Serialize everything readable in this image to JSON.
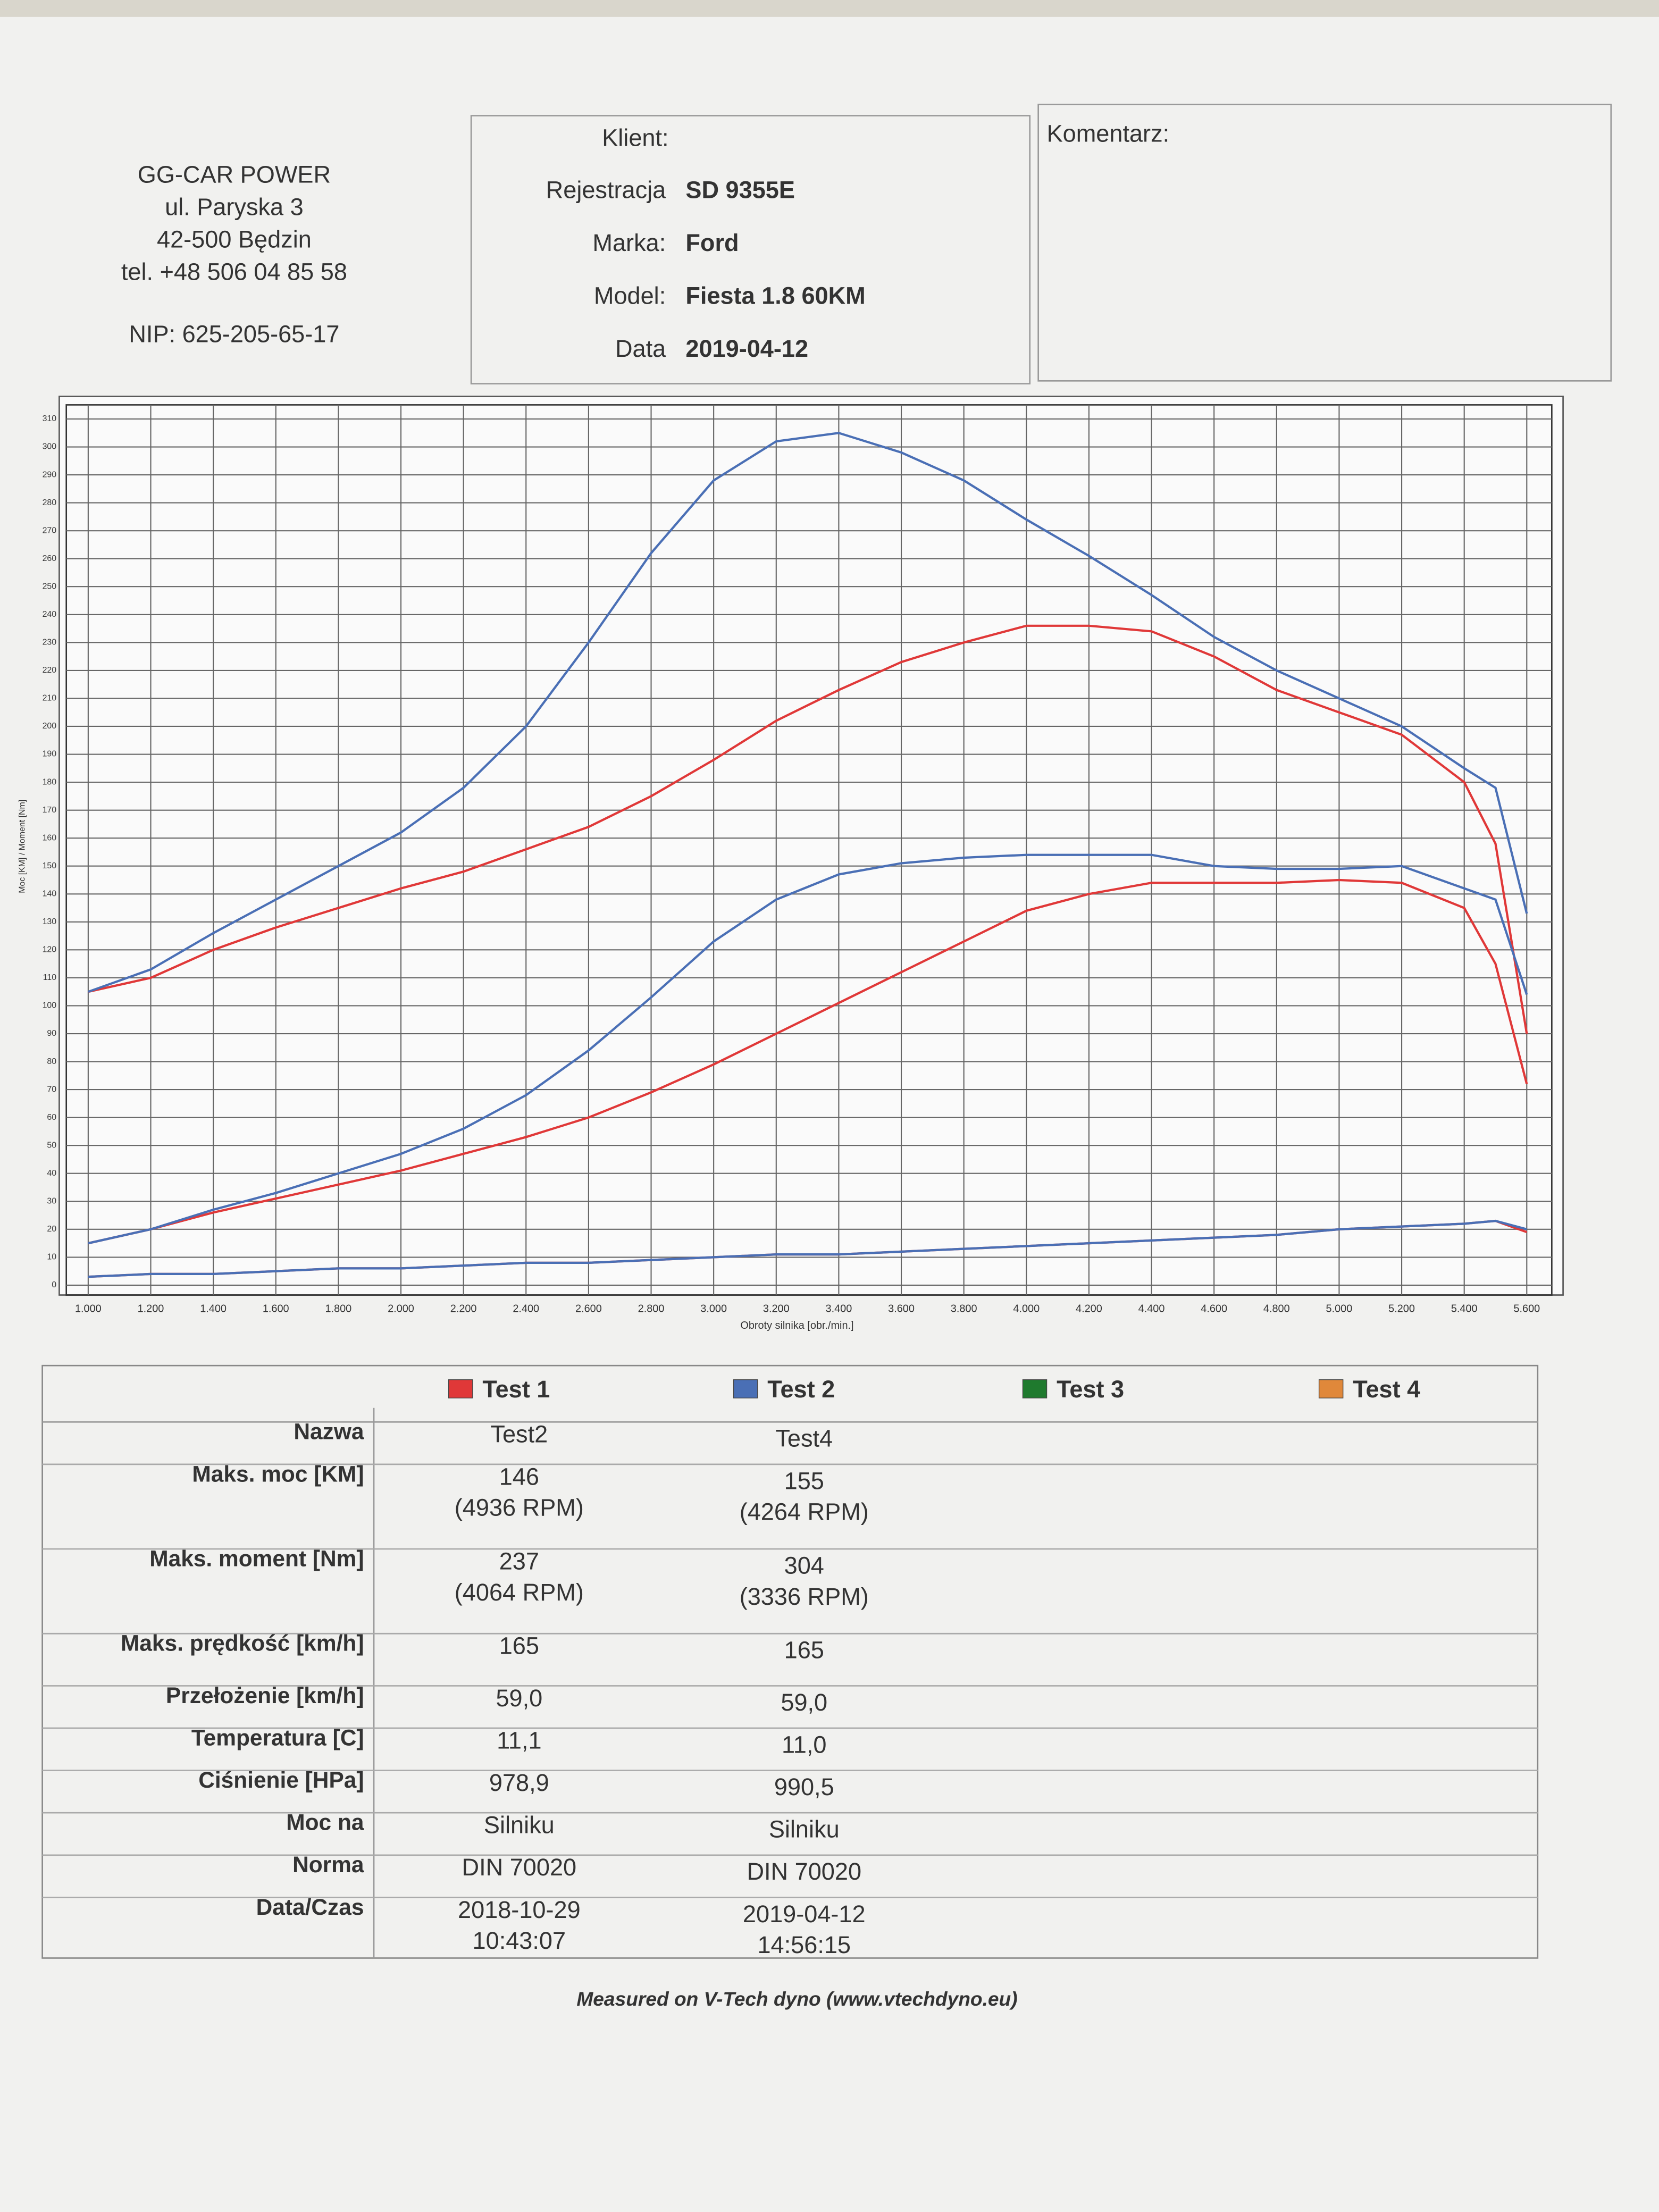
{
  "header": {
    "company": [
      "GG-CAR POWER",
      "ul. Paryska 3",
      "42-500 Będzin",
      "tel. +48 506 04 85 58"
    ],
    "nip": "NIP: 625-205-65-17",
    "client_label": "Klient:",
    "fields": [
      {
        "label": "Rejestracja",
        "value": "SD 9355E"
      },
      {
        "label": "Marka:",
        "value": "Ford"
      },
      {
        "label": "Model:",
        "value": "Fiesta 1.8 60KM"
      },
      {
        "label": "Data",
        "value": "2019-04-12"
      }
    ],
    "comment_label": "Komentarz:"
  },
  "chart_data": {
    "type": "line",
    "x_label": "Obroty silnika [obr./min.]",
    "y_label": "Moc [KM] / Moment [Nm]",
    "x": [
      1000,
      1200,
      1400,
      1600,
      1800,
      2000,
      2200,
      2400,
      2600,
      2800,
      3000,
      3200,
      3400,
      3600,
      3800,
      4000,
      4200,
      4400,
      4600,
      4800,
      5000,
      5200,
      5400,
      5500,
      5600
    ],
    "series": [
      {
        "name": "Test 1",
        "color": "#e03838",
        "values": [
          105,
          110,
          120,
          128,
          135,
          142,
          148,
          156,
          164,
          175,
          188,
          202,
          213,
          223,
          230,
          236,
          236,
          234,
          225,
          213,
          205,
          197,
          180,
          158,
          90
        ],
        "power_values": [
          15,
          20,
          26,
          31,
          36,
          41,
          47,
          53,
          60,
          69,
          79,
          90,
          101,
          112,
          123,
          134,
          140,
          144,
          144,
          144,
          145,
          144,
          135,
          115,
          72
        ],
        "loss_values": [
          3,
          4,
          4,
          5,
          6,
          6,
          7,
          8,
          8,
          9,
          10,
          11,
          11,
          12,
          13,
          14,
          15,
          16,
          17,
          18,
          20,
          21,
          22,
          23,
          19
        ]
      },
      {
        "name": "Test 2",
        "color": "#4a6fb5",
        "values": [
          105,
          113,
          126,
          138,
          150,
          162,
          178,
          200,
          230,
          262,
          288,
          302,
          305,
          298,
          288,
          274,
          261,
          247,
          232,
          220,
          210,
          200,
          185,
          178,
          133
        ],
        "power_values": [
          15,
          20,
          27,
          33,
          40,
          47,
          56,
          68,
          84,
          103,
          123,
          138,
          147,
          151,
          153,
          154,
          154,
          154,
          150,
          149,
          149,
          150,
          142,
          138,
          104
        ],
        "loss_values": [
          3,
          4,
          4,
          5,
          6,
          6,
          7,
          8,
          8,
          9,
          10,
          11,
          11,
          12,
          13,
          14,
          15,
          16,
          17,
          18,
          20,
          21,
          22,
          23,
          20
        ]
      },
      {
        "name": "Test 3",
        "color": "#1f7a2e"
      },
      {
        "name": "Test 4",
        "color": "#e0883a"
      }
    ],
    "xlim": [
      930,
      5680
    ],
    "ylim": [
      0,
      310
    ],
    "xticks": [
      {
        "value": 1000,
        "label": "1.000"
      },
      {
        "value": 1200,
        "label": "1.200"
      },
      {
        "value": 1400,
        "label": "1.400"
      },
      {
        "value": 1600,
        "label": "1.600"
      },
      {
        "value": 1800,
        "label": "1.800"
      },
      {
        "value": 2000,
        "label": "2.000"
      },
      {
        "value": 2200,
        "label": "2.200"
      },
      {
        "value": 2400,
        "label": "2.400"
      },
      {
        "value": 2600,
        "label": "2.600"
      },
      {
        "value": 2800,
        "label": "2.800"
      },
      {
        "value": 3000,
        "label": "3.000"
      },
      {
        "value": 3200,
        "label": "3.200"
      },
      {
        "value": 3400,
        "label": "3.400"
      },
      {
        "value": 3600,
        "label": "3.600"
      },
      {
        "value": 3800,
        "label": "3.800"
      },
      {
        "value": 4000,
        "label": "4.000"
      },
      {
        "value": 4200,
        "label": "4.200"
      },
      {
        "value": 4400,
        "label": "4.400"
      },
      {
        "value": 4600,
        "label": "4.600"
      },
      {
        "value": 4800,
        "label": "4.800"
      },
      {
        "value": 5000,
        "label": "5.000"
      },
      {
        "value": 5200,
        "label": "5.200"
      },
      {
        "value": 5400,
        "label": "5.400"
      },
      {
        "value": 5600,
        "label": "5.600"
      }
    ],
    "yticks": [
      0,
      10,
      20,
      30,
      40,
      50,
      60,
      70,
      80,
      90,
      100,
      110,
      120,
      130,
      140,
      150,
      160,
      170,
      180,
      190,
      200,
      210,
      220,
      230,
      240,
      250,
      260,
      270,
      280,
      290,
      300,
      310
    ],
    "grid": true
  },
  "table": {
    "rows": [
      {
        "label": "Nazwa",
        "cells": [
          [
            "Test2"
          ],
          [
            "Test4"
          ]
        ]
      },
      {
        "label": "Maks. moc [KM]",
        "cells": [
          [
            "146",
            "(4936 RPM)"
          ],
          [
            "155",
            "(4264 RPM)"
          ]
        ]
      },
      {
        "label": "Maks. moment [Nm]",
        "cells": [
          [
            "237",
            "(4064 RPM)"
          ],
          [
            "304",
            "(3336 RPM)"
          ]
        ]
      },
      {
        "label": "Maks. prędkość [km/h]",
        "cells": [
          [
            "165"
          ],
          [
            "165"
          ]
        ]
      },
      {
        "label": "Przełożenie [km/h]",
        "cells": [
          [
            "59,0"
          ],
          [
            "59,0"
          ]
        ]
      },
      {
        "label": "Temperatura [C]",
        "cells": [
          [
            "11,1"
          ],
          [
            "11,0"
          ]
        ]
      },
      {
        "label": "Ciśnienie [HPa]",
        "cells": [
          [
            "978,9"
          ],
          [
            "990,5"
          ]
        ]
      },
      {
        "label": "Moc na",
        "cells": [
          [
            "Silniku"
          ],
          [
            "Silniku"
          ]
        ]
      },
      {
        "label": "Norma",
        "cells": [
          [
            "DIN 70020"
          ],
          [
            "DIN 70020"
          ]
        ]
      },
      {
        "label": "Data/Czas",
        "cells": [
          [
            "2018-10-29",
            "10:43:07"
          ],
          [
            "2019-04-12",
            "14:56:15"
          ]
        ]
      }
    ]
  },
  "footer": "Measured on V-Tech dyno (www.vtechdyno.eu)"
}
